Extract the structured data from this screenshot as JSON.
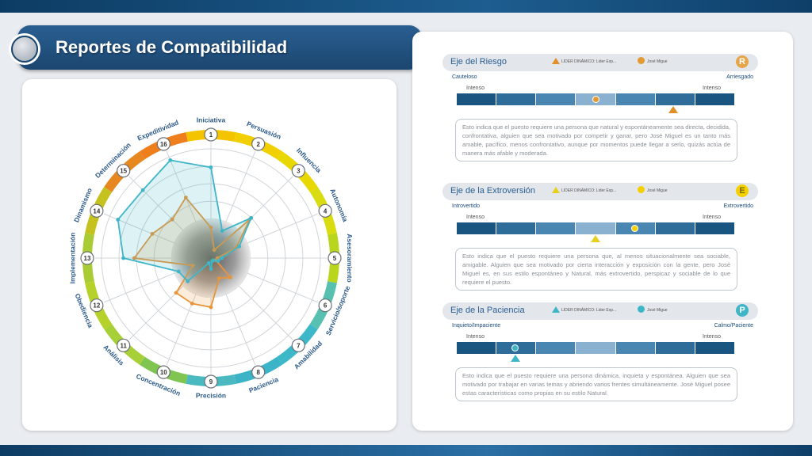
{
  "title": "Reportes de Compatibilidad",
  "radar": {
    "axes": [
      "Iniciativa",
      "Persuasión",
      "Influencia",
      "Autonomía",
      "Asesoramiento",
      "Servicio/soporte",
      "Amabilidad",
      "Paciencia",
      "Precisión",
      "Concentración",
      "Análisis",
      "Obediencia",
      "Implementación",
      "Dinamismo",
      "Determinación",
      "Expeditividad"
    ],
    "numbers": [
      "1",
      "2",
      "3",
      "4",
      "5",
      "6",
      "7",
      "8",
      "9",
      "10",
      "11",
      "12",
      "13",
      "14",
      "15",
      "16"
    ],
    "ring_colors": [
      "#f5c400",
      "#f2d000",
      "#e9d800",
      "#d9dc10",
      "#b9d61c",
      "#58c0b0",
      "#3cb8c8",
      "#3cb4c8",
      "#4ab9c0",
      "#80c552",
      "#a7cf38",
      "#b6d22a",
      "#a9cc34",
      "#c5c11e",
      "#e68720",
      "#ef7f1d"
    ],
    "series": [
      {
        "name": "orange",
        "color": "#e8943a",
        "values": [
          0.28,
          0.08,
          0.5,
          0.25,
          0.06,
          0.05,
          0.25,
          0.2,
          0.45,
          0.45,
          0.45,
          0.18,
          0.7,
          0.58,
          0.5,
          0.6
        ]
      },
      {
        "name": "teal",
        "color": "#3fb6c8",
        "values": [
          0.83,
          0.27,
          0.52,
          0.28,
          0.1,
          0.07,
          0.03,
          0.03,
          0.1,
          0.05,
          0.3,
          0.32,
          0.8,
          0.92,
          0.88,
          0.97
        ]
      }
    ]
  },
  "axes": [
    {
      "title": "Eje del Riesgo",
      "legend_leader": "LIDER DINÁMICO: Lider Exp...",
      "legend_person": "José Migue",
      "badge": "R",
      "badge_color": "#e6a54a",
      "leader_color": "#e38e26",
      "person_color": "#e39a30",
      "left": "Cauteloso",
      "right": "Arriesgado",
      "intense_left": "Intenso",
      "intense_right": "Intenso",
      "person_pos": 0.5,
      "leader_pos": 0.78,
      "text": "Esto indica que el puesto requiere una persona que natural y espontáneamente sea directa, decidida, confrontativa, alguien que sea motivado por competir y ganar, pero José Miguel es un tanto más amable, pacífico, menos confrontativo, aunque por momentos puede llegar a serlo, quizás actúa de manera más afable y moderada."
    },
    {
      "title": "Eje de la Extroversión",
      "legend_leader": "LIDER DINÁMICO: Lider Exp...",
      "legend_person": "José Migue",
      "badge": "E",
      "badge_color": "#f5d000",
      "leader_color": "#e8d020",
      "person_color": "#f5d000",
      "left": "Introvertido",
      "right": "Extrovertido",
      "intense_left": "Intenso",
      "intense_right": "Intenso",
      "person_pos": 0.64,
      "leader_pos": 0.5,
      "text": "Esto indica que el puesto requiere una persona que, al menos situacionalmente sea sociable, amigable. Alguien que sea motivado por cierta interacción y exposición con la gente, pero José Miguel es, en sus estilo espontáneo y Natural, más extrovertido, perspicaz y sociable de lo que requiere el puesto."
    },
    {
      "title": "Eje de la Paciencia",
      "legend_leader": "LIDER DINÁMICO: Lider Exp...",
      "legend_person": "José Migue",
      "badge": "P",
      "badge_color": "#3fb6c8",
      "leader_color": "#3fb6c8",
      "person_color": "#3fb6c8",
      "left": "Inquieto/Impaciente",
      "right": "Calmo/Paciente",
      "intense_left": "Intenso",
      "intense_right": "Intenso",
      "person_pos": 0.21,
      "leader_pos": 0.21,
      "text": "Esto indica que el puesto requiere una persona dinámica, inquieta y espontánea. Alguien que sea motivado por trabajar en varias temas y abriendo varios frentes simultáneamente. José Miguel posee estas características como propias en su estilo Natural."
    }
  ],
  "scale_colors": [
    "#1a5582",
    "#2e6c9a",
    "#4a86b2",
    "#8ab2d0",
    "#4a86b2",
    "#2e6c9a",
    "#1a5582"
  ]
}
